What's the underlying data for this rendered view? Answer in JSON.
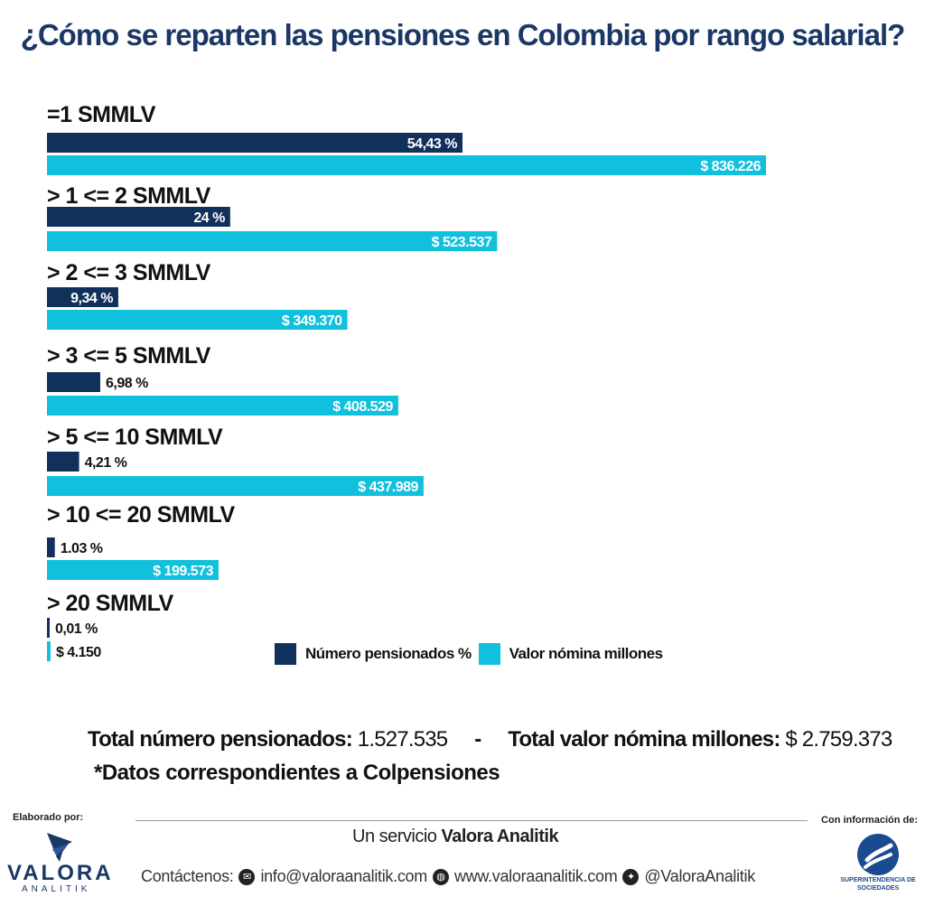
{
  "title": "¿Cómo se reparten las pensiones en Colombia por rango salarial?",
  "colors": {
    "count": "#12305c",
    "value": "#11c0dd",
    "title": "#1a3766"
  },
  "chart_data": {
    "type": "bar",
    "orientation": "horizontal",
    "categories": [
      "=1 SMMLV",
      "> 1 <= 2 SMMLV",
      "> 2 <= 3 SMMLV",
      "> 3 <= 5 SMMLV",
      "> 5 <= 10 SMMLV",
      "> 10 <= 20 SMMLV",
      "> 20 SMMLV"
    ],
    "series": [
      {
        "name": "Número pensionados %",
        "values": [
          54.43,
          24,
          9.34,
          6.98,
          4.21,
          1.03,
          0.01
        ],
        "labels": [
          "54,43 %",
          "24 %",
          "9,34 %",
          "6,98 %",
          "4,21 %",
          "1.03 %",
          "0,01 %"
        ]
      },
      {
        "name": "Valor nómina millones",
        "values": [
          836226,
          523537,
          349370,
          408529,
          437989,
          199573,
          4150
        ],
        "labels": [
          "$ 836.226",
          "$ 523.537",
          "$ 349.370",
          "$ 408.529",
          "$ 437.989",
          "$ 199.573",
          "$ 4.150"
        ]
      }
    ],
    "legend_position": "bottom"
  },
  "totals": {
    "pensioners_label": "Total número pensionados:",
    "pensioners_value": "1.527.535",
    "separator": "-",
    "payroll_label": "Total valor nómina millones:",
    "payroll_value": "$ 2.759.373"
  },
  "note": "*Datos correspondientes a Colpensiones",
  "footer": {
    "made_by": "Elaborado por:",
    "info_from": "Con información de:",
    "service_prefix": "Un servicio",
    "service_brand": "Valora Analitik",
    "contact_label": "Contáctenos:",
    "email": "info@valoraanalitik.com",
    "website": "www.valoraanalitik.com",
    "twitter": "@ValoraAnalitik",
    "logo_left": {
      "name": "VALORA",
      "sub": "ANALITIK"
    },
    "logo_right": "SUPERINTENDENCIA DE SOCIEDADES",
    "icons": [
      "email-icon",
      "globe-icon",
      "twitter-icon"
    ]
  }
}
